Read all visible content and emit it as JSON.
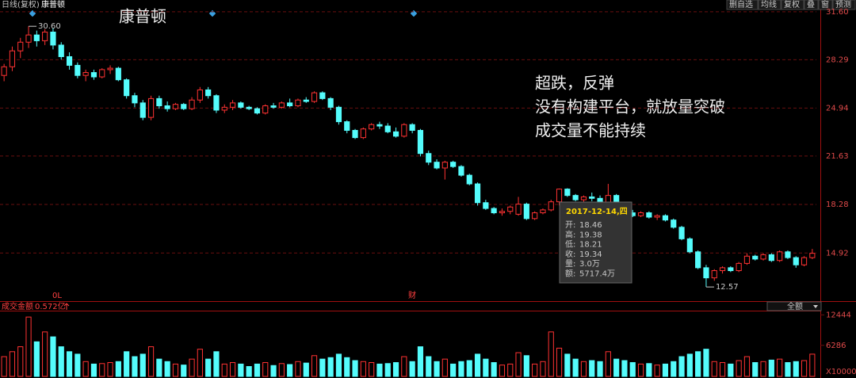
{
  "header": {
    "period": "日线(复权)",
    "name": "康普顿",
    "buttons": [
      "删自选",
      "均线",
      "复权",
      "叠",
      "窗",
      "预测"
    ]
  },
  "title": "康普顿",
  "annotation": [
    "超跌，反弹",
    "没有构建平台，就放量突破",
    "成交量不能持续"
  ],
  "tooltip": {
    "date": "2017-12-14,四",
    "rows": [
      {
        "label": "开:",
        "value": "18.46"
      },
      {
        "label": "高:",
        "value": "19.38"
      },
      {
        "label": "低:",
        "value": "18.21"
      },
      {
        "label": "收:",
        "value": "19.34"
      },
      {
        "label": "量:",
        "value": "3.0万"
      },
      {
        "label": "额:",
        "value": "5717.4万"
      }
    ]
  },
  "markers": [
    "0L",
    "财"
  ],
  "volume_header": {
    "title": "成交金额",
    "value": "0.572亿",
    "selector": "全额"
  },
  "chart_data": [
    {
      "type": "candlestick",
      "up_color": "#ff3232",
      "down_color": "#54fcfc",
      "grid": true,
      "ylim": [
        11.7,
        31.87
      ],
      "yticks": [
        {
          "value": 31.6,
          "label": "31.60"
        },
        28.29,
        24.94,
        21.63,
        18.28,
        14.92
      ],
      "extremes": [
        {
          "value": 30.6,
          "label": "30.60"
        },
        {
          "value": 12.57,
          "label": "12.57"
        }
      ],
      "open": [
        27.2,
        27.8,
        28.9,
        29.5,
        30.0,
        29.6,
        30.2,
        29.3,
        28.5,
        27.9,
        27.2,
        27.4,
        27.1,
        27.6,
        27.7,
        26.9,
        25.8,
        25.3,
        24.3,
        25.6,
        25.1,
        24.9,
        25.2,
        24.9,
        25.5,
        26.2,
        25.8,
        24.8,
        25.0,
        25.3,
        25.0,
        24.9,
        24.6,
        25.1,
        25.0,
        25.3,
        25.1,
        25.5,
        25.4,
        26.0,
        25.6,
        25.0,
        24.0,
        23.4,
        22.9,
        23.5,
        23.8,
        23.7,
        23.3,
        23.0,
        23.8,
        23.4,
        21.8,
        21.2,
        20.8,
        21.2,
        20.9,
        20.3,
        19.7,
        18.4,
        18.0,
        17.7,
        17.8,
        17.6,
        18.3,
        17.3,
        17.7,
        17.9,
        18.46,
        19.34,
        18.9,
        18.6,
        18.8,
        18.7,
        18.4,
        18.9,
        18.3,
        17.7,
        17.5,
        17.7,
        17.4,
        17.5,
        17.2,
        16.7,
        15.9,
        15.0,
        13.9,
        13.2,
        13.7,
        13.9,
        13.7,
        14.2,
        14.7,
        14.5,
        14.8,
        14.4,
        15.0,
        14.6,
        14.1,
        14.6
      ],
      "high": [
        28.0,
        29.2,
        29.8,
        30.6,
        30.3,
        30.4,
        30.5,
        29.5,
        28.8,
        28.1,
        27.6,
        27.6,
        27.7,
        27.9,
        27.8,
        27.0,
        26.0,
        25.5,
        25.8,
        25.8,
        25.4,
        25.3,
        25.3,
        25.7,
        26.4,
        26.4,
        25.9,
        25.2,
        25.5,
        25.4,
        25.1,
        25.0,
        25.2,
        25.3,
        25.4,
        25.6,
        25.6,
        25.7,
        26.1,
        26.1,
        25.7,
        25.1,
        24.1,
        23.5,
        23.6,
        23.9,
        24.0,
        23.9,
        23.6,
        23.9,
        23.9,
        23.5,
        22.0,
        21.4,
        21.3,
        21.3,
        21.0,
        20.4,
        19.8,
        18.6,
        18.1,
        18.0,
        18.2,
        18.8,
        18.4,
        17.8,
        18.0,
        18.6,
        19.38,
        19.4,
        19.0,
        18.9,
        19.1,
        18.9,
        19.7,
        19.0,
        18.4,
        17.9,
        17.8,
        17.8,
        17.6,
        17.6,
        17.3,
        16.8,
        16.0,
        15.1,
        14.1,
        13.8,
        14.0,
        14.0,
        14.3,
        14.9,
        14.8,
        14.9,
        14.9,
        15.1,
        15.1,
        14.7,
        14.7,
        15.2
      ],
      "low": [
        26.8,
        27.5,
        28.4,
        29.1,
        29.2,
        29.3,
        29.0,
        28.3,
        27.6,
        27.0,
        26.8,
        26.9,
        27.0,
        27.3,
        26.8,
        25.6,
        25.0,
        24.1,
        24.1,
        24.9,
        24.7,
        24.8,
        24.8,
        24.8,
        25.3,
        25.6,
        24.6,
        24.6,
        24.8,
        24.9,
        24.8,
        24.5,
        24.5,
        24.9,
        24.9,
        25.0,
        25.0,
        25.3,
        25.3,
        25.5,
        24.8,
        23.8,
        23.2,
        22.8,
        22.8,
        23.4,
        23.5,
        23.2,
        22.9,
        22.9,
        23.2,
        21.6,
        21.0,
        20.7,
        20.0,
        20.8,
        20.2,
        19.6,
        18.2,
        17.9,
        17.6,
        17.5,
        17.6,
        17.5,
        17.2,
        17.2,
        17.6,
        17.8,
        18.21,
        18.8,
        18.5,
        18.4,
        18.5,
        18.3,
        18.3,
        18.2,
        17.6,
        17.4,
        17.4,
        17.3,
        17.2,
        17.1,
        16.6,
        15.8,
        14.9,
        13.8,
        12.57,
        13.0,
        13.5,
        13.6,
        13.6,
        14.1,
        14.4,
        14.4,
        14.3,
        14.3,
        14.5,
        13.9,
        14.0,
        14.5
      ],
      "close": [
        27.8,
        28.9,
        29.5,
        30.0,
        29.6,
        30.2,
        29.3,
        28.5,
        27.9,
        27.2,
        27.4,
        27.1,
        27.6,
        27.7,
        26.9,
        25.8,
        25.3,
        24.3,
        25.6,
        25.1,
        24.9,
        25.2,
        24.9,
        25.5,
        26.2,
        25.8,
        24.8,
        25.0,
        25.3,
        25.0,
        24.9,
        24.6,
        25.1,
        25.0,
        25.3,
        25.1,
        25.5,
        25.4,
        26.0,
        25.6,
        25.0,
        24.0,
        23.4,
        22.9,
        23.5,
        23.8,
        23.7,
        23.3,
        23.0,
        23.8,
        23.4,
        21.8,
        21.2,
        20.8,
        21.2,
        20.9,
        20.3,
        19.7,
        18.4,
        18.0,
        17.7,
        17.8,
        18.1,
        18.3,
        17.3,
        17.7,
        17.9,
        18.46,
        19.34,
        18.9,
        18.6,
        18.8,
        18.7,
        18.4,
        18.9,
        18.3,
        17.7,
        17.5,
        17.7,
        17.4,
        17.5,
        17.2,
        16.7,
        15.9,
        15.0,
        13.9,
        13.2,
        13.7,
        13.9,
        13.7,
        14.2,
        14.7,
        14.5,
        14.8,
        14.4,
        15.0,
        14.6,
        14.1,
        14.6,
        14.9
      ]
    },
    {
      "type": "bar",
      "ylim": [
        0,
        13300
      ],
      "yticks": [
        12444,
        6286
      ],
      "y_unit": "X10000",
      "values": [
        4000,
        5000,
        6000,
        12000,
        7000,
        9000,
        8000,
        6000,
        5000,
        4500,
        3000,
        2500,
        2600,
        2800,
        3000,
        5000,
        4000,
        4500,
        6000,
        3500,
        3000,
        2500,
        2300,
        3500,
        5500,
        3500,
        5000,
        2500,
        2800,
        2500,
        2000,
        2500,
        2800,
        2200,
        2600,
        2400,
        3000,
        2700,
        4200,
        3500,
        3800,
        4500,
        3800,
        3200,
        3000,
        2800,
        2500,
        2600,
        2800,
        4000,
        3000,
        6000,
        4000,
        3000,
        3500,
        2500,
        3000,
        3200,
        4500,
        3500,
        2800,
        2300,
        2500,
        4800,
        4200,
        2500,
        3000,
        9000,
        5717.4,
        4500,
        3500,
        3000,
        3200,
        3000,
        5000,
        3500,
        3200,
        2800,
        2500,
        2600,
        2300,
        2500,
        3000,
        4000,
        4500,
        5000,
        5500,
        3000,
        2800,
        2500,
        3200,
        4000,
        2800,
        3000,
        3300,
        3500,
        2800,
        3000,
        3200,
        4500
      ]
    }
  ]
}
